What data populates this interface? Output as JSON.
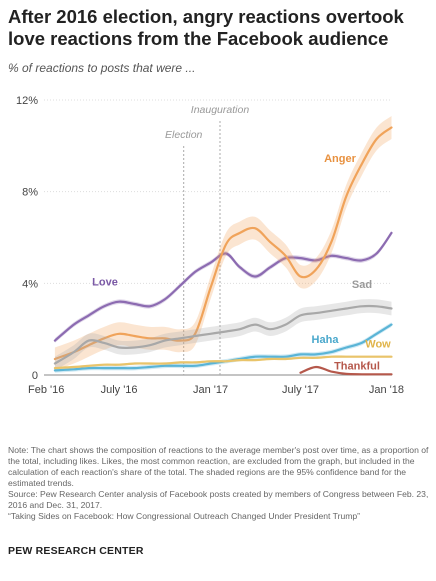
{
  "title": "After 2016 election, angry reactions overtook love reactions from the Facebook audience",
  "subtitle": "% of reactions to posts that were ...",
  "notes": {
    "note": "Note: The chart shows the composition of reactions to the average member's post over time, as a proportion of the total, including likes. Likes, the most common reaction, are excluded from the graph, but included in the calculation of each reaction's share of the total. The shaded regions are the 95% confidence band for the estimated trends.",
    "source": "Source: Pew Research Center analysis of Facebook posts created by members of Congress between Feb. 23, 2016 and Dec. 31, 2017.",
    "report": "“Taking Sides on Facebook: How Congressional Outreach Changed Under President Trump”"
  },
  "brand": "PEW RESEARCH CENTER",
  "chart_data": {
    "type": "line",
    "ylim": [
      0,
      12
    ],
    "yticks": [
      0,
      4,
      8,
      12
    ],
    "ytick_labels": [
      "0",
      "4%",
      "8%",
      "12%"
    ],
    "xlim": [
      "2016-02-01",
      "2018-01-01"
    ],
    "xticks": [
      "2016-02-01",
      "2016-07-01",
      "2017-01-01",
      "2017-07-01",
      "2018-01-01"
    ],
    "xtick_labels": [
      "Feb '16",
      "July '16",
      "Jan '17",
      "July '17",
      "Jan '18"
    ],
    "grid": "horizontal",
    "events": [
      {
        "label": "Election",
        "date": "2016-11-08"
      },
      {
        "label": "Inauguration",
        "date": "2017-01-20"
      }
    ],
    "x": [
      "2016-02-23",
      "2016-04-01",
      "2016-05-01",
      "2016-06-01",
      "2016-07-01",
      "2016-08-01",
      "2016-09-01",
      "2016-10-01",
      "2016-11-01",
      "2016-12-01",
      "2017-01-01",
      "2017-02-01",
      "2017-03-01",
      "2017-04-01",
      "2017-05-01",
      "2017-06-01",
      "2017-07-01",
      "2017-08-01",
      "2017-09-01",
      "2017-10-01",
      "2017-11-01",
      "2017-12-01",
      "2017-12-31"
    ],
    "series": [
      {
        "name": "Love",
        "color": "#8c6bb1",
        "values": [
          1.5,
          2.2,
          2.6,
          3.0,
          3.2,
          3.1,
          3.0,
          3.3,
          3.9,
          4.5,
          4.9,
          5.3,
          4.7,
          4.3,
          4.7,
          5.1,
          5.1,
          5.0,
          5.2,
          5.1,
          5.0,
          5.3,
          6.2
        ],
        "band": 0.1
      },
      {
        "name": "Anger",
        "color": "#f0a35a",
        "values": [
          0.7,
          1.0,
          1.3,
          1.6,
          1.8,
          1.7,
          1.6,
          1.6,
          1.5,
          1.8,
          3.8,
          5.7,
          6.2,
          6.4,
          5.8,
          5.2,
          4.3,
          4.6,
          5.8,
          7.8,
          9.2,
          10.3,
          10.8
        ],
        "band": 0.5
      },
      {
        "name": "Sad",
        "color": "#a8a8a8",
        "values": [
          0.5,
          1.0,
          1.5,
          1.4,
          1.2,
          1.2,
          1.3,
          1.5,
          1.6,
          1.7,
          1.8,
          1.9,
          2.0,
          2.2,
          2.0,
          2.2,
          2.6,
          2.7,
          2.8,
          2.9,
          3.0,
          3.0,
          2.9
        ],
        "band": 0.3
      },
      {
        "name": "Haha",
        "color": "#5ab4d6",
        "values": [
          0.2,
          0.25,
          0.3,
          0.3,
          0.3,
          0.3,
          0.35,
          0.4,
          0.4,
          0.4,
          0.5,
          0.6,
          0.7,
          0.8,
          0.8,
          0.8,
          0.9,
          0.9,
          1.0,
          1.2,
          1.4,
          1.8,
          2.2
        ],
        "band": 0.1
      },
      {
        "name": "Wow",
        "color": "#e9c46a",
        "values": [
          0.3,
          0.35,
          0.4,
          0.45,
          0.45,
          0.5,
          0.5,
          0.5,
          0.55,
          0.55,
          0.6,
          0.6,
          0.65,
          0.65,
          0.7,
          0.7,
          0.75,
          0.75,
          0.8,
          0.8,
          0.8,
          0.8,
          0.8
        ],
        "band": 0.05
      },
      {
        "name": "Thankful",
        "color": "#b5584b",
        "values": [
          null,
          null,
          null,
          null,
          null,
          null,
          null,
          null,
          null,
          null,
          null,
          null,
          null,
          null,
          null,
          null,
          0.1,
          0.35,
          0.15,
          0.05,
          0.03,
          0.03,
          0.03
        ],
        "band": 0.02
      }
    ]
  }
}
